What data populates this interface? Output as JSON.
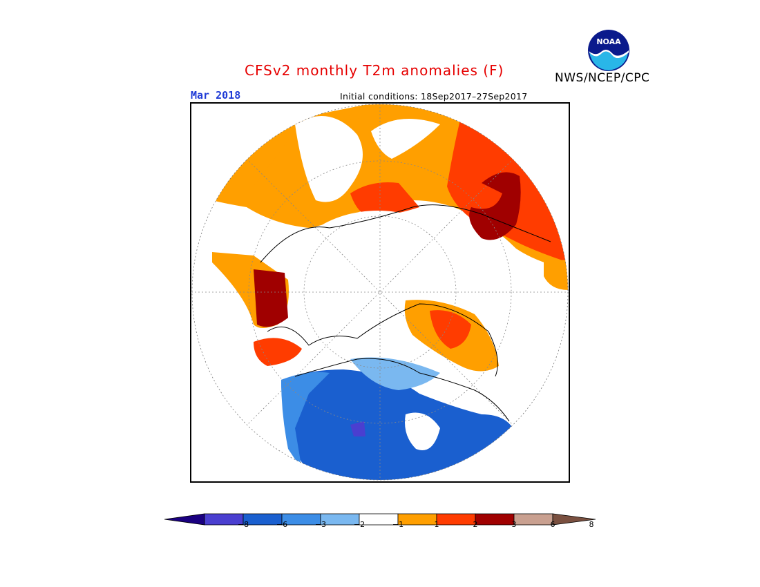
{
  "header": {
    "title": "CFSv2 monthly T2m anomalies (F)",
    "agency": "NWS/NCEP/CPC",
    "logo_text": "NOAA"
  },
  "subheader": {
    "month": "Mar 2018",
    "initial_conditions": "Initial conditions: 18Sep2017–27Sep2017"
  },
  "map": {
    "projection": "north-polar-stereographic",
    "field": "T2m anomaly",
    "units": "F"
  },
  "legend": {
    "ticks": [
      "−8",
      "−6",
      "−3",
      "−2",
      "−1",
      "1",
      "2",
      "3",
      "6",
      "8"
    ],
    "colors": [
      "#1a0080",
      "#4a3fd0",
      "#1a5fcf",
      "#3c8de6",
      "#7ab8f0",
      "#ffffff",
      "#ff9f00",
      "#ff3c00",
      "#a00000",
      "#c9a090",
      "#7a5040"
    ]
  }
}
